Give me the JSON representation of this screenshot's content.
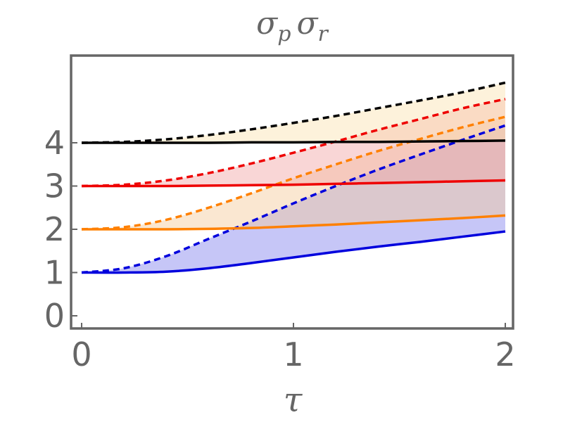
{
  "chart_data": {
    "type": "line",
    "title": "σp σr",
    "title_parts": {
      "sym1": "σ",
      "sub1": "p",
      "sym2": "σ",
      "sub2": "r"
    },
    "xlabel": "τ",
    "ylabel": "",
    "xlim": [
      0,
      2
    ],
    "ylim": [
      -0.2,
      5.2
    ],
    "x_ticks": [
      0,
      1,
      2
    ],
    "x_tick_labels": [
      "0",
      "1",
      "2"
    ],
    "y_ticks": [
      0,
      1,
      2,
      3,
      4
    ],
    "y_tick_labels": [
      "0",
      "1",
      "2",
      "3",
      "4"
    ],
    "grid": false,
    "legend": "none",
    "colors": {
      "axis": "#666666",
      "tick_text": "#666666"
    },
    "x": [
      0,
      0.2,
      0.4,
      0.6,
      0.8,
      1.0,
      1.2,
      1.4,
      1.6,
      1.8,
      2.0
    ],
    "series": [
      {
        "color": "#0000dd",
        "fill": "#8080ee",
        "solid": [
          1.0,
          1.0,
          1.02,
          1.1,
          1.22,
          1.35,
          1.48,
          1.6,
          1.71,
          1.83,
          1.95
        ],
        "dashed": [
          1.0,
          1.1,
          1.38,
          1.78,
          2.18,
          2.6,
          3.0,
          3.38,
          3.73,
          4.07,
          4.4
        ]
      },
      {
        "color": "#ff8000",
        "fill": "#f5c99a",
        "solid": [
          2.0,
          2.0,
          2.0,
          2.01,
          2.03,
          2.07,
          2.11,
          2.16,
          2.21,
          2.26,
          2.32
        ],
        "dashed": [
          2.0,
          2.05,
          2.22,
          2.5,
          2.83,
          3.18,
          3.5,
          3.81,
          4.09,
          4.36,
          4.6
        ]
      },
      {
        "color": "#ee0000",
        "fill": "#f2a5a5",
        "solid": [
          3.0,
          3.0,
          3.0,
          3.01,
          3.02,
          3.03,
          3.05,
          3.07,
          3.09,
          3.11,
          3.13
        ],
        "dashed": [
          3.0,
          3.03,
          3.13,
          3.3,
          3.52,
          3.77,
          4.03,
          4.3,
          4.55,
          4.8,
          5.01
        ]
      },
      {
        "color": "#000000",
        "fill": "#fbe3b0",
        "solid": [
          4.0,
          4.0,
          4.0,
          4.0,
          4.01,
          4.01,
          4.02,
          4.02,
          4.03,
          4.04,
          4.05
        ],
        "dashed": [
          4.0,
          4.02,
          4.08,
          4.18,
          4.31,
          4.46,
          4.62,
          4.8,
          4.98,
          5.17,
          5.39
        ]
      }
    ]
  }
}
